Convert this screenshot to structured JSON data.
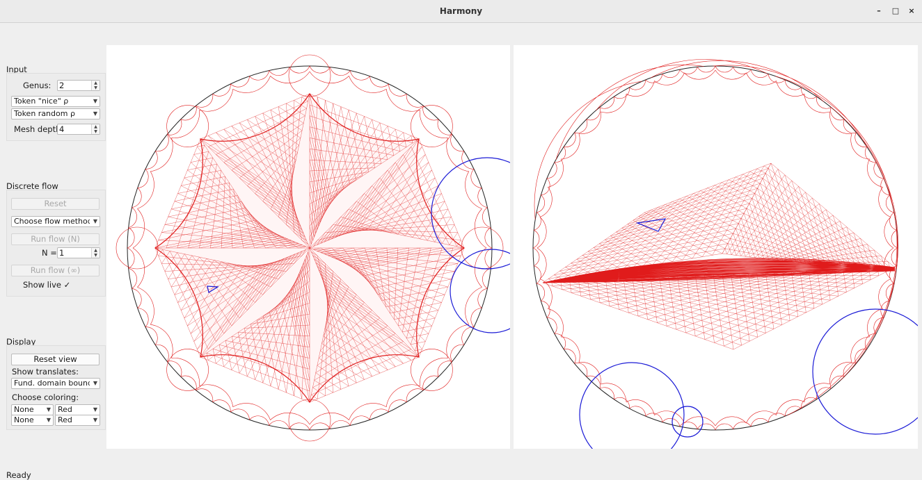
{
  "window": {
    "title": "Harmony",
    "minimize": "–",
    "maximize": "□",
    "close": "×"
  },
  "input": {
    "heading": "Input",
    "genus_label": "Genus:",
    "genus_value": "2",
    "nice_rho": "Token \"nice\" ρ",
    "random_rho": "Token random ρ",
    "mesh_label": "Mesh depth:",
    "mesh_value": "4"
  },
  "flow": {
    "heading": "Discrete flow",
    "reset": "Reset",
    "method": "Choose flow method...",
    "run_n": "Run flow (N)",
    "n_label": "N =",
    "n_value": "1",
    "run_inf": "Run flow (∞)",
    "show_live": "Show live ✓"
  },
  "display": {
    "heading": "Display",
    "reset_view": "Reset view",
    "translates_label": "Show translates:",
    "translates_value": "Fund. domain boundary",
    "coloring_label": "Choose coloring:",
    "color_rows": [
      {
        "scheme": "None",
        "color": "Red"
      },
      {
        "scheme": "None",
        "color": "Red"
      }
    ]
  },
  "status": "Ready",
  "colors": {
    "mesh": "#e01b1b",
    "highlight": "#1a1ad6",
    "disk": "#222222"
  },
  "icons": [
    "spin-arrows-icon",
    "dropdown-arrow-icon",
    "minimize-icon",
    "maximize-icon",
    "close-icon"
  ]
}
